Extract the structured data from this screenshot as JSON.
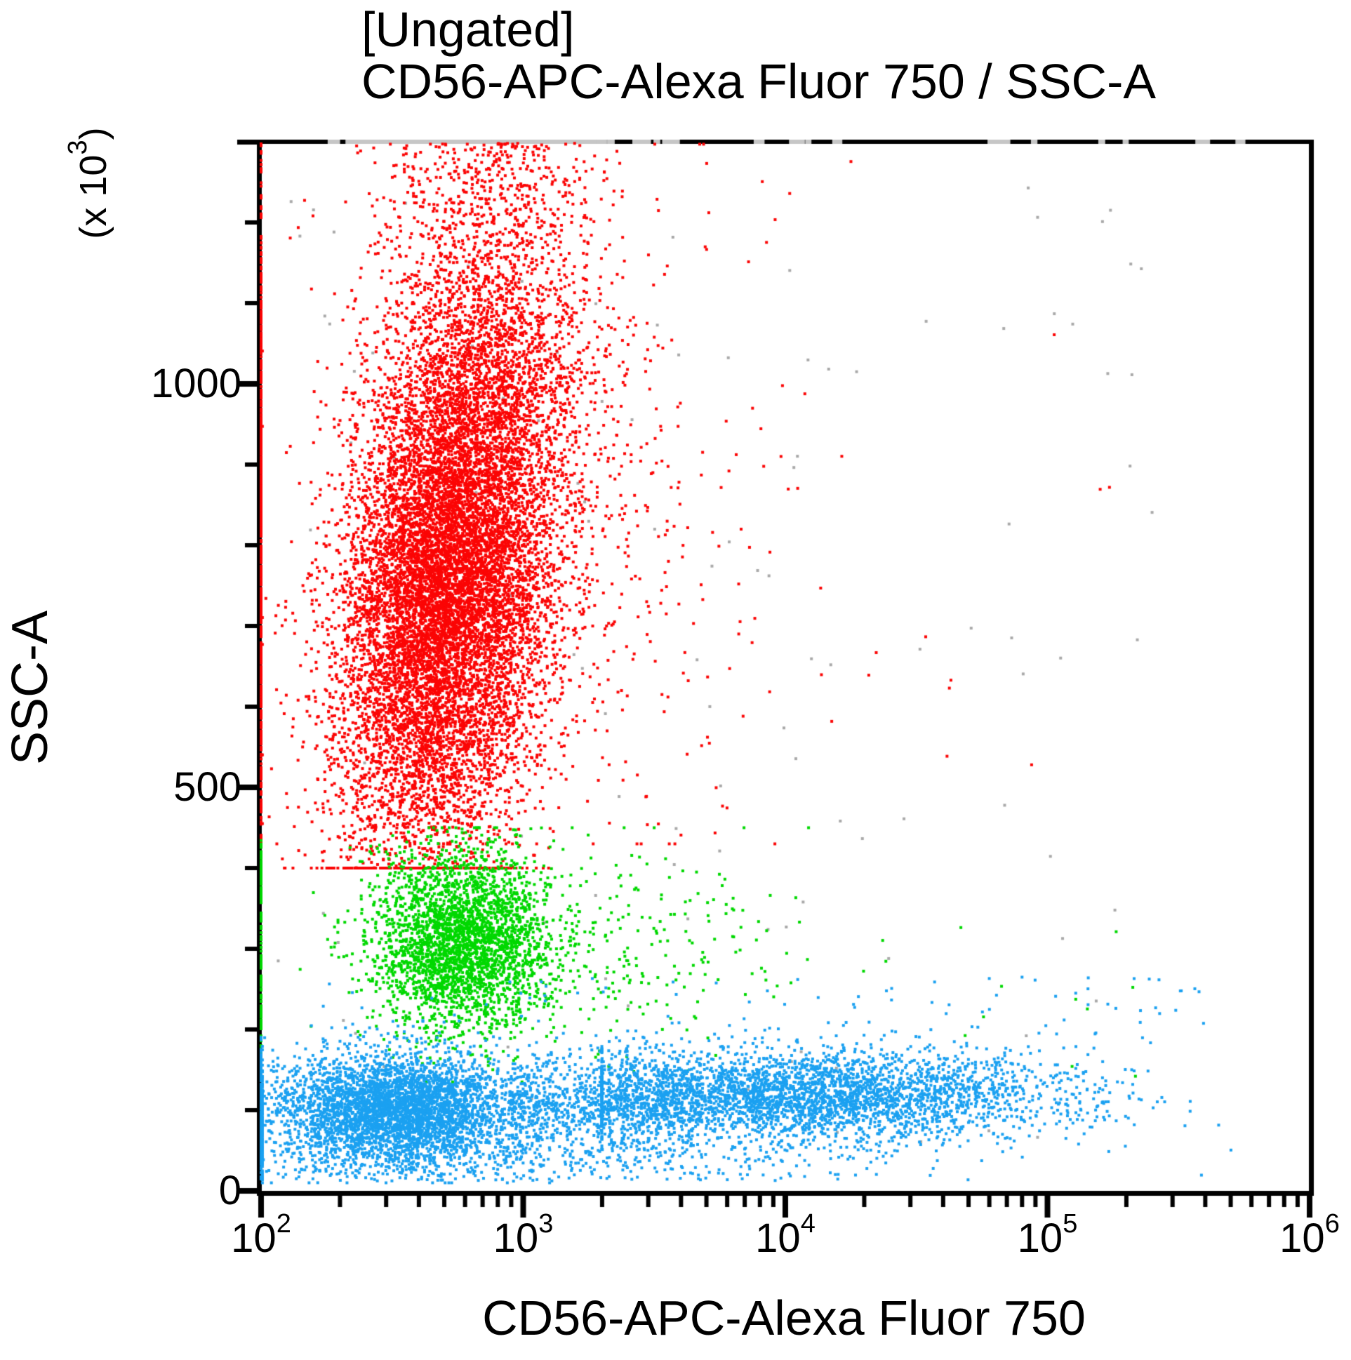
{
  "title": {
    "gate": "[Ungated]",
    "axes_pair": "CD56-APC-Alexa Fluor 750 / SSC-A"
  },
  "x_axis": {
    "label": "CD56-APC-Alexa Fluor 750",
    "scale": "log10",
    "tick_base": "10",
    "tick_exponents": [
      2,
      3,
      4,
      5,
      6
    ],
    "minor_multiples": [
      2,
      3,
      4,
      5,
      6,
      7,
      8,
      9
    ]
  },
  "y_axis": {
    "label": "SSC-A",
    "unit_prefix": "(x 10",
    "unit_sup": "3",
    "unit_suffix": ")",
    "scale": "linear",
    "min": 0,
    "max": 1300,
    "major_ticks": [
      {
        "value": 0,
        "label": "0"
      },
      {
        "value": 500,
        "label": "500"
      },
      {
        "value": 1000,
        "label": "1000"
      }
    ],
    "minor_tick_step": 100
  },
  "colors": {
    "red": "#FB0505",
    "green": "#00D800",
    "blue": "#1BA1F1",
    "gray": "#A9A9A9",
    "axis": "#000000",
    "pinned_top_dash": "#C6C6C6",
    "background": "#FFFFFF"
  },
  "chart_data": {
    "type": "scatter",
    "title": "[Ungated]",
    "subtitle": "CD56-APC-Alexa Fluor 750 / SSC-A",
    "xlabel": "CD56-APC-Alexa Fluor 750",
    "ylabel": "SSC-A (x 10^3)",
    "x_scale": "log10",
    "x_range": [
      100,
      1000000
    ],
    "y_range": [
      0,
      1300
    ],
    "grid": false,
    "legend": "none",
    "dot_size": 4,
    "seed": 20240707,
    "note": "Flow cytometry dot plot; points are generated from these cluster parameters. u = log10(x), y in SSC-A x10^3 units.",
    "populations": [
      {
        "name": "gray-debris-scatter",
        "color": "gray",
        "count": 130,
        "x": {
          "dist": "uniform",
          "min": 2.05,
          "max": 5.4
        },
        "y": {
          "dist": "uniform",
          "min": 60,
          "max": 1270
        }
      },
      {
        "name": "red-granulocytes-pinned-left",
        "color": "red",
        "count": 620,
        "x": {
          "dist": "pinned",
          "u": 2.0
        },
        "y": {
          "dist": "normal",
          "mean": 800,
          "sd": 240,
          "min": 430,
          "max": 1297
        }
      },
      {
        "name": "red-granulocytes-main",
        "color": "red",
        "count": 12500,
        "x": {
          "dist": "normal",
          "mean": 2.72,
          "sd": 0.2,
          "corr": 0.00033,
          "ref": 760,
          "min": 2.005,
          "max": 5.9
        },
        "y": {
          "dist": "normal",
          "mean": 760,
          "sd": 170,
          "min": 400,
          "max": 1297
        }
      },
      {
        "name": "red-granulocytes-top-tail",
        "color": "red",
        "count": 1500,
        "pin_top_over": 1300,
        "x": {
          "dist": "normal",
          "mean": 2.87,
          "sd": 0.23,
          "min": 2.005,
          "max": 5.9
        },
        "y": {
          "dist": "uniform",
          "min": 950,
          "max": 1400
        }
      },
      {
        "name": "red-right-scatter",
        "color": "red",
        "count": 430,
        "x": {
          "dist": "normal",
          "mean": 3.2,
          "sd": 0.38,
          "min": 2.005,
          "max": 5.9
        },
        "y": {
          "dist": "normal",
          "mean": 800,
          "sd": 210,
          "min": 430,
          "max": 1297
        }
      },
      {
        "name": "red-far-outliers",
        "color": "red",
        "count": 18,
        "x": {
          "dist": "uniform",
          "min": 3.3,
          "max": 5.3
        },
        "y": {
          "dist": "uniform",
          "min": 500,
          "max": 1270
        }
      },
      {
        "name": "green-monocytes-pinned-left",
        "color": "green",
        "count": 150,
        "x": {
          "dist": "pinned",
          "u": 2.0
        },
        "y": {
          "dist": "uniform",
          "min": 150,
          "max": 435
        }
      },
      {
        "name": "green-monocytes-main",
        "color": "green",
        "count": 3000,
        "x": {
          "dist": "normal",
          "mean": 2.77,
          "sd": 0.17,
          "min": 2.005,
          "max": 5.9
        },
        "y": {
          "dist": "normal",
          "mean": 310,
          "sd": 55,
          "min": 135,
          "max": 450
        }
      },
      {
        "name": "green-right-tail",
        "color": "green",
        "count": 270,
        "x": {
          "dist": "normal",
          "mean": 3.35,
          "sd": 0.38,
          "min": 2.6,
          "max": 5.9
        },
        "y": {
          "dist": "normal",
          "mean": 300,
          "sd": 62,
          "min": 130,
          "max": 450
        }
      },
      {
        "name": "green-far-outliers",
        "color": "green",
        "count": 12,
        "x": {
          "dist": "uniform",
          "min": 4.2,
          "max": 5.35
        },
        "y": {
          "dist": "uniform",
          "min": 140,
          "max": 330
        }
      },
      {
        "name": "blue-lymphocytes-pinned-left",
        "color": "blue",
        "count": 190,
        "x": {
          "dist": "pinned",
          "u": 2.0
        },
        "y": {
          "dist": "normal",
          "mean": 100,
          "sd": 40,
          "min": 15,
          "max": 190
        }
      },
      {
        "name": "blue-cd56neg-blob",
        "color": "blue",
        "count": 4200,
        "x": {
          "dist": "normal",
          "mean": 2.52,
          "sd": 0.24,
          "min": 2.005,
          "max": 5.9
        },
        "y": {
          "dist": "normal",
          "mean": 100,
          "sd": 34,
          "min": 10,
          "max": 210
        }
      },
      {
        "name": "blue-bridge",
        "color": "blue",
        "count": 900,
        "x": {
          "dist": "uniform",
          "min": 2.95,
          "max": 3.65
        },
        "y": {
          "dist": "normal",
          "mean": 112,
          "sd": 30,
          "min": 12,
          "max": 210
        }
      },
      {
        "name": "blue-cd56pos-band",
        "color": "blue",
        "count": 3400,
        "x": {
          "dist": "normal",
          "mean": 4.08,
          "sd": 0.48,
          "min": 3.3,
          "max": 5.85
        },
        "y": {
          "dist": "normal",
          "mean": 118,
          "sd": 28,
          "min": 15,
          "max": 230
        }
      },
      {
        "name": "blue-low-sparse",
        "color": "blue",
        "count": 430,
        "x": {
          "dist": "normal",
          "mean": 3.1,
          "sd": 0.75,
          "min": 2.005,
          "max": 5.7
        },
        "y": {
          "dist": "uniform",
          "min": 12,
          "max": 65
        }
      },
      {
        "name": "blue-high-sparse",
        "color": "blue",
        "count": 120,
        "x": {
          "dist": "uniform",
          "min": 2.2,
          "max": 5.6
        },
        "y": {
          "dist": "uniform",
          "min": 170,
          "max": 265
        }
      }
    ],
    "pinned_top_extra": {
      "count": 14,
      "min_u": 3.1,
      "max_u": 5.9
    }
  }
}
